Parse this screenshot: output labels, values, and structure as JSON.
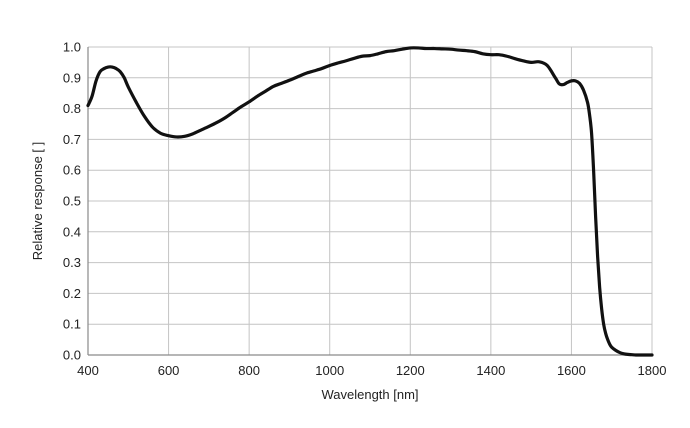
{
  "chart_data": {
    "type": "line",
    "title": "",
    "xlabel": "Wavelength [nm]",
    "ylabel": "Relative response [ ]",
    "xlim": [
      400,
      1800
    ],
    "ylim": [
      0.0,
      1.0
    ],
    "x_ticks": [
      400,
      600,
      800,
      1000,
      1200,
      1400,
      1600,
      1800
    ],
    "y_ticks": [
      0.0,
      0.1,
      0.2,
      0.3,
      0.4,
      0.5,
      0.6,
      0.7,
      0.8,
      0.9,
      1.0
    ],
    "x_tick_labels": [
      "400",
      "600",
      "800",
      "1000",
      "1200",
      "1400",
      "1600",
      "1800"
    ],
    "y_tick_labels": [
      "0.0",
      "0.1",
      "0.2",
      "0.3",
      "0.4",
      "0.5",
      "0.6",
      "0.7",
      "0.8",
      "0.9",
      "1.0"
    ],
    "grid": true,
    "legend": "none",
    "line_color": "#111111",
    "series": [
      {
        "x": [
          400,
          410,
          420,
          430,
          440,
          450,
          460,
          470,
          480,
          490,
          500,
          520,
          540,
          560,
          580,
          600,
          620,
          640,
          660,
          680,
          700,
          720,
          740,
          760,
          780,
          800,
          820,
          840,
          860,
          880,
          900,
          920,
          940,
          960,
          980,
          1000,
          1020,
          1040,
          1060,
          1080,
          1100,
          1120,
          1140,
          1160,
          1180,
          1200,
          1220,
          1240,
          1260,
          1280,
          1300,
          1320,
          1340,
          1360,
          1380,
          1400,
          1420,
          1440,
          1460,
          1480,
          1500,
          1520,
          1540,
          1560,
          1570,
          1580,
          1590,
          1600,
          1610,
          1620,
          1630,
          1640,
          1645,
          1650,
          1655,
          1660,
          1665,
          1670,
          1675,
          1680,
          1685,
          1690,
          1695,
          1700,
          1710,
          1720,
          1730,
          1740,
          1750,
          1760,
          1770,
          1780,
          1790,
          1800
        ],
        "y": [
          0.81,
          0.84,
          0.89,
          0.92,
          0.93,
          0.935,
          0.935,
          0.93,
          0.92,
          0.9,
          0.87,
          0.82,
          0.775,
          0.74,
          0.72,
          0.712,
          0.708,
          0.71,
          0.718,
          0.73,
          0.742,
          0.755,
          0.77,
          0.788,
          0.806,
          0.822,
          0.84,
          0.856,
          0.872,
          0.882,
          0.892,
          0.903,
          0.914,
          0.922,
          0.93,
          0.94,
          0.948,
          0.955,
          0.963,
          0.97,
          0.972,
          0.978,
          0.985,
          0.988,
          0.993,
          0.997,
          0.997,
          0.995,
          0.995,
          0.994,
          0.993,
          0.99,
          0.988,
          0.985,
          0.978,
          0.975,
          0.975,
          0.97,
          0.962,
          0.955,
          0.95,
          0.952,
          0.94,
          0.9,
          0.88,
          0.878,
          0.885,
          0.89,
          0.89,
          0.882,
          0.86,
          0.82,
          0.78,
          0.72,
          0.6,
          0.45,
          0.32,
          0.22,
          0.15,
          0.1,
          0.07,
          0.05,
          0.035,
          0.025,
          0.015,
          0.008,
          0.004,
          0.002,
          0.001,
          0.0,
          0.0,
          0.0,
          0.0,
          0.0
        ]
      }
    ]
  }
}
